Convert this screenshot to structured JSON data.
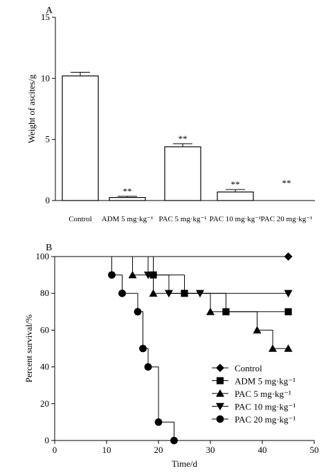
{
  "chart_data": [
    {
      "panel_label": "A",
      "type": "bar",
      "ylabel": "Weight of ascites/g",
      "ylim": [
        0,
        15
      ],
      "yticks": [
        0,
        5,
        10,
        15
      ],
      "categories": [
        "Control",
        "ADM 5 mg·kg⁻¹",
        "PAC 5 mg·kg⁻¹",
        "PAC 10 mg·kg⁻¹",
        "PAC 20 mg·kg⁻¹"
      ],
      "values": [
        10.2,
        0.25,
        4.4,
        0.7,
        0
      ],
      "errors": [
        0.3,
        0.1,
        0.25,
        0.2,
        0
      ],
      "significance": [
        "",
        "**",
        "**",
        "**",
        "**"
      ]
    },
    {
      "panel_label": "B",
      "type": "line",
      "xlabel": "Time/d",
      "ylabel": "Percent survival/%",
      "xlim": [
        0,
        50
      ],
      "ylim": [
        0,
        100
      ],
      "xticks": [
        0,
        10,
        20,
        30,
        40,
        50
      ],
      "yticks": [
        0,
        20,
        40,
        60,
        80,
        100
      ],
      "legend_position": "bottom-right",
      "series": [
        {
          "name": "Control",
          "marker": "diamond",
          "steps": [
            [
              0,
              100
            ],
            [
              45,
              100
            ]
          ],
          "points": [
            [
              45,
              100
            ]
          ]
        },
        {
          "name": "ADM 5 mg·kg⁻¹",
          "marker": "square",
          "steps": [
            [
              0,
              100
            ],
            [
              19,
              100
            ],
            [
              19,
              90
            ],
            [
              25,
              90
            ],
            [
              25,
              80
            ],
            [
              33,
              80
            ],
            [
              33,
              70
            ],
            [
              45,
              70
            ]
          ],
          "points": [
            [
              19,
              90
            ],
            [
              25,
              80
            ],
            [
              33,
              70
            ],
            [
              45,
              70
            ]
          ]
        },
        {
          "name": "PAC 5 mg·kg⁻¹",
          "marker": "triangle-up",
          "steps": [
            [
              0,
              100
            ],
            [
              15,
              100
            ],
            [
              15,
              90
            ],
            [
              19,
              90
            ],
            [
              19,
              80
            ],
            [
              30,
              80
            ],
            [
              30,
              70
            ],
            [
              39,
              70
            ],
            [
              39,
              60
            ],
            [
              42,
              60
            ],
            [
              42,
              50
            ],
            [
              45,
              50
            ]
          ],
          "points": [
            [
              15,
              90
            ],
            [
              19,
              80
            ],
            [
              30,
              70
            ],
            [
              39,
              60
            ],
            [
              42,
              50
            ],
            [
              45,
              50
            ]
          ]
        },
        {
          "name": "PAC 10 mg·kg⁻¹",
          "marker": "triangle-down",
          "steps": [
            [
              0,
              100
            ],
            [
              18,
              100
            ],
            [
              18,
              90
            ],
            [
              22,
              90
            ],
            [
              22,
              80
            ],
            [
              45,
              80
            ]
          ],
          "points": [
            [
              18,
              90
            ],
            [
              22,
              80
            ],
            [
              28,
              80
            ],
            [
              45,
              80
            ]
          ]
        },
        {
          "name": "PAC 20 mg·kg⁻¹",
          "marker": "circle",
          "steps": [
            [
              0,
              100
            ],
            [
              11,
              100
            ],
            [
              11,
              90
            ],
            [
              13,
              90
            ],
            [
              13,
              80
            ],
            [
              16,
              80
            ],
            [
              16,
              70
            ],
            [
              17,
              70
            ],
            [
              17,
              50
            ],
            [
              18,
              50
            ],
            [
              18,
              40
            ],
            [
              20,
              40
            ],
            [
              20,
              10
            ],
            [
              23,
              10
            ],
            [
              23,
              0
            ]
          ],
          "points": [
            [
              11,
              90
            ],
            [
              13,
              80
            ],
            [
              16,
              70
            ],
            [
              17,
              50
            ],
            [
              18,
              40
            ],
            [
              20,
              10
            ],
            [
              23,
              0
            ]
          ]
        }
      ]
    }
  ]
}
